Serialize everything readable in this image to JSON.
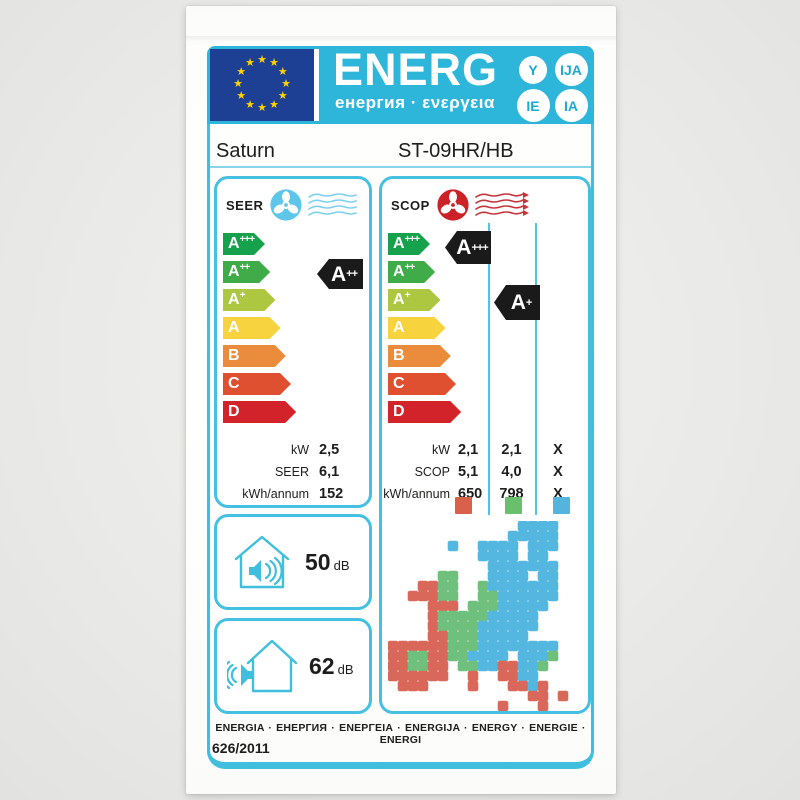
{
  "header": {
    "logo_text": "ENERG",
    "logo_subtitle": "енергия · ενεργεια",
    "badges": [
      "Y",
      "IJA",
      "IE",
      "IA"
    ]
  },
  "product": {
    "brand": "Saturn",
    "model": "ST-09HR/HB"
  },
  "colors": {
    "cyan": "#2eb6da",
    "box_border": "#46c0e0",
    "flag_blue": "#1d3f94",
    "star_yellow": "#ffd200",
    "indicator_black": "#1a1a1a",
    "seer_fan": "#5ec6e8",
    "scop_fan": "#cb2127"
  },
  "energy_classes": [
    {
      "letter": "A",
      "sup": "+++",
      "color": "#16a24c"
    },
    {
      "letter": "A",
      "sup": "++",
      "color": "#3fab49"
    },
    {
      "letter": "A",
      "sup": "+",
      "color": "#aec740"
    },
    {
      "letter": "A",
      "sup": "",
      "color": "#f7d33d"
    },
    {
      "letter": "B",
      "sup": "",
      "color": "#ea8c3b"
    },
    {
      "letter": "C",
      "sup": "",
      "color": "#df5030"
    },
    {
      "letter": "D",
      "sup": "",
      "color": "#d2232b"
    }
  ],
  "seer": {
    "section_label": "SEER",
    "rating_letter": "A",
    "rating_sup": "++",
    "rows": [
      {
        "label": "kW",
        "value": "2,5"
      },
      {
        "label": "SEER",
        "value": "6,1"
      },
      {
        "label": "kWh/annum",
        "value": "152"
      }
    ]
  },
  "scop": {
    "section_label": "SCOP",
    "ratings": [
      {
        "letter": "A",
        "sup": "+++"
      },
      {
        "letter": "A",
        "sup": "+"
      }
    ],
    "rows": [
      {
        "label": "kW",
        "values": [
          "2,1",
          "2,1",
          "X"
        ]
      },
      {
        "label": "SCOP",
        "values": [
          "5,1",
          "4,0",
          "X"
        ]
      },
      {
        "label": "kWh/annum",
        "values": [
          "650",
          "798",
          "X"
        ]
      }
    ],
    "zone_colors": [
      "#d9604a",
      "#68bf6c",
      "#55b4dd"
    ]
  },
  "noise": {
    "indoor": {
      "value": "50",
      "unit": "dB"
    },
    "outdoor": {
      "value": "62",
      "unit": "dB"
    }
  },
  "footer": {
    "energy_words": "ENERGIA · ЕНЕРГИЯ · ΕΝΕΡΓΕΙΑ · ENERGIJA · ENERGY · ENERGIE · ENERGI",
    "regulation": "626/2011"
  },
  "climate_map": {
    "cell_size": 10,
    "colors": {
      "B": "#54b7e0",
      "G": "#6fc07c",
      "R": "#d9685a"
    },
    "rows": [
      ".............BBBB...",
      "............BBBBB...",
      "......B..BBBB.BBB...",
      ".........BBBB.BB....",
      "..........BBBBBBB...",
      ".....GG...BBBB.BB...",
      "...RRGG..GBBBBBBB...",
      "..RRRGG..GGBBBBBB...",
      "....RRR.GGGBBBBB....",
      "....RGGGGGBBBBB.....",
      "....RGGGGBBBBBB.....",
      "....RRGGGBBBBB......",
      "RRRRRRGGGBBBBBBBB...",
      "RRGGRRGGBBBB.BBBG...",
      "RRGGRR.GGBBRRBBG....",
      "RRRRRR..R..RRBB.....",
      ".RRR....R...RRBR....",
      "..............RR.R..",
      "...........R...R...."
    ]
  }
}
